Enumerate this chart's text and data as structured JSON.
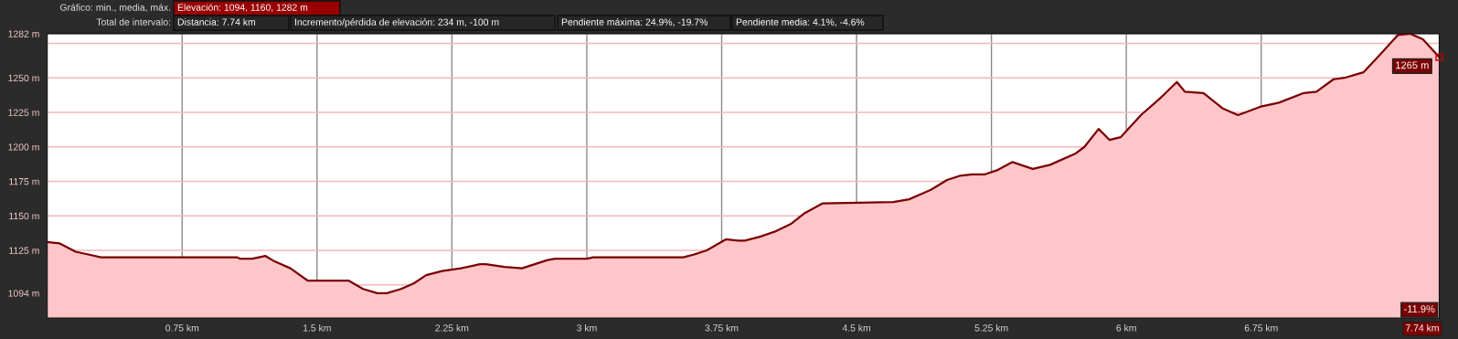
{
  "chart_data": {
    "type": "area",
    "x": [
      0,
      0.07,
      0.158,
      0.228,
      0.299,
      1.054,
      1.071,
      1.141,
      1.212,
      1.264,
      1.352,
      1.449,
      1.536,
      1.677,
      1.756,
      1.835,
      1.888,
      1.967,
      2.037,
      2.107,
      2.195,
      2.3,
      2.406,
      2.438,
      2.543,
      2.64,
      2.781,
      2.824,
      3.0,
      3.035,
      3.536,
      3.597,
      3.667,
      3.773,
      3.843,
      3.878,
      3.966,
      4.054,
      4.133,
      4.212,
      4.309,
      4.704,
      4.792,
      4.915,
      5.003,
      5.073,
      5.142,
      5.21,
      5.28,
      5.367,
      5.48,
      5.576,
      5.715,
      5.767,
      5.846,
      5.907,
      5.968,
      6.081,
      6.186,
      6.281,
      6.325,
      6.429,
      6.534,
      6.621,
      6.743,
      6.848,
      6.987,
      7.057,
      7.152,
      7.213,
      7.318,
      7.405,
      7.51,
      7.579,
      7.649,
      7.74
    ],
    "series": [
      {
        "color": "#7a0000",
        "values": [
          1131,
          1130,
          1124,
          1122,
          1120,
          1120,
          1119,
          1119,
          1121,
          1117,
          1112,
          1103,
          1103,
          1103,
          1097,
          1094,
          1094,
          1097,
          1101,
          1107,
          1110,
          1112,
          1115,
          1115,
          1113,
          1112,
          1118,
          1119,
          1119,
          1120,
          1120,
          1122,
          1125,
          1133,
          1132,
          1132,
          1135,
          1139,
          1144,
          1152,
          1159,
          1160,
          1162,
          1169,
          1176,
          1179,
          1180,
          1180,
          1183,
          1189,
          1184,
          1187,
          1195,
          1200,
          1213,
          1205,
          1207,
          1223,
          1235,
          1247,
          1240,
          1239,
          1228,
          1223,
          1229,
          1232,
          1239,
          1240,
          1249,
          1250,
          1254,
          1266,
          1281,
          1282,
          1278,
          1265
        ]
      }
    ],
    "xlim": [
      0,
      7.74
    ],
    "ylim": [
      1076,
      1282
    ],
    "xticks": [
      {
        "value": 0.75,
        "label": "0.75 km"
      },
      {
        "value": 1.5,
        "label": "1.5 km"
      },
      {
        "value": 2.25,
        "label": "2.25 km"
      },
      {
        "value": 3,
        "label": "3 km"
      },
      {
        "value": 3.75,
        "label": "3.75 km"
      },
      {
        "value": 4.5,
        "label": "4.5 km"
      },
      {
        "value": 5.25,
        "label": "5.25 km"
      },
      {
        "value": 6,
        "label": "6 km"
      },
      {
        "value": 6.75,
        "label": "6.75 km"
      },
      {
        "value": 7.5,
        "label": null
      },
      {
        "value": 7.74,
        "label": "7.74 km"
      }
    ],
    "yticks": [
      {
        "value": 1094,
        "label": "1094 m"
      },
      {
        "value": 1100,
        "label": null
      },
      {
        "value": 1125,
        "label": "1125 m"
      },
      {
        "value": 1150,
        "label": "1150 m"
      },
      {
        "value": 1175,
        "label": "1175 m"
      },
      {
        "value": 1200,
        "label": "1200 m"
      },
      {
        "value": 1225,
        "label": "1225 m"
      },
      {
        "value": 1250,
        "label": "1250 m"
      },
      {
        "value": 1275,
        "label": null
      },
      {
        "value": 1282,
        "label": "1282 m"
      }
    ],
    "grid": true,
    "annotations": [
      "Gráfico: min., media, máx.",
      "Elevación: 1094, 1160, 1282 m",
      "Total de intervalo:",
      "Distancia: 7.74 km",
      "Incremento/pérdida de elevación: 234 m, -100 m",
      "Pendiente máxima: 24.9%, -19.7%",
      "Pendiente media: 4.1%, -4.6%",
      {
        "text": "1265 m",
        "x": 7.74,
        "y": 1265
      },
      "-11.9%"
    ]
  }
}
